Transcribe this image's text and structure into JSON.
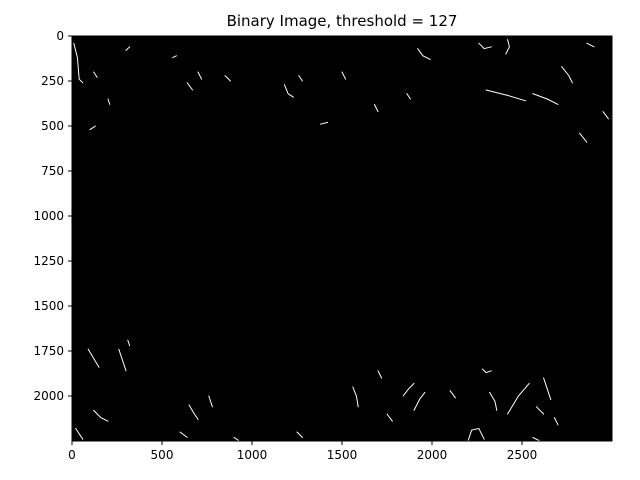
{
  "chart_data": {
    "type": "heatmap",
    "title": "Binary Image, threshold = 127",
    "xlabel": "",
    "ylabel": "",
    "xlim": [
      0,
      3000
    ],
    "ylim": [
      2250,
      0
    ],
    "x_ticks": [
      {
        "value": 0,
        "label": "0"
      },
      {
        "value": 500,
        "label": "500"
      },
      {
        "value": 1000,
        "label": "1000"
      },
      {
        "value": 1500,
        "label": "1500"
      },
      {
        "value": 2000,
        "label": "2000"
      },
      {
        "value": 2500,
        "label": "2500"
      }
    ],
    "y_ticks": [
      {
        "value": 0,
        "label": "0"
      },
      {
        "value": 250,
        "label": "250"
      },
      {
        "value": 500,
        "label": "500"
      },
      {
        "value": 750,
        "label": "750"
      },
      {
        "value": 1000,
        "label": "1000"
      },
      {
        "value": 1250,
        "label": "1250"
      },
      {
        "value": 1500,
        "label": "1500"
      },
      {
        "value": 1750,
        "label": "1750"
      },
      {
        "value": 2000,
        "label": "2000"
      }
    ],
    "grid": false,
    "colormap": "gray",
    "background_color": "#000000",
    "foreground_color": "#ffffff",
    "edges": [
      [
        [
          10,
          40
        ],
        [
          30,
          120
        ],
        [
          40,
          240
        ],
        [
          60,
          260
        ]
      ],
      [
        [
          120,
          200
        ],
        [
          140,
          230
        ]
      ],
      [
        [
          200,
          350
        ],
        [
          210,
          380
        ]
      ],
      [
        [
          100,
          520
        ],
        [
          130,
          500
        ]
      ],
      [
        [
          300,
          80
        ],
        [
          320,
          60
        ]
      ],
      [
        [
          560,
          120
        ],
        [
          580,
          110
        ]
      ],
      [
        [
          640,
          260
        ],
        [
          670,
          300
        ]
      ],
      [
        [
          700,
          200
        ],
        [
          720,
          240
        ]
      ],
      [
        [
          850,
          220
        ],
        [
          880,
          250
        ]
      ],
      [
        [
          1180,
          270
        ],
        [
          1200,
          320
        ],
        [
          1230,
          340
        ]
      ],
      [
        [
          1260,
          220
        ],
        [
          1280,
          250
        ]
      ],
      [
        [
          1380,
          490
        ],
        [
          1420,
          480
        ]
      ],
      [
        [
          1500,
          200
        ],
        [
          1520,
          240
        ]
      ],
      [
        [
          1680,
          380
        ],
        [
          1700,
          420
        ]
      ],
      [
        [
          1860,
          320
        ],
        [
          1880,
          350
        ]
      ],
      [
        [
          1920,
          70
        ],
        [
          1950,
          110
        ],
        [
          1990,
          130
        ]
      ],
      [
        [
          2260,
          40
        ],
        [
          2290,
          70
        ],
        [
          2330,
          60
        ]
      ],
      [
        [
          2420,
          20
        ],
        [
          2430,
          60
        ],
        [
          2410,
          100
        ]
      ],
      [
        [
          2300,
          300
        ],
        [
          2420,
          330
        ],
        [
          2520,
          360
        ]
      ],
      [
        [
          2560,
          320
        ],
        [
          2640,
          350
        ],
        [
          2700,
          380
        ]
      ],
      [
        [
          2720,
          170
        ],
        [
          2760,
          220
        ],
        [
          2780,
          260
        ]
      ],
      [
        [
          2860,
          40
        ],
        [
          2900,
          60
        ]
      ],
      [
        [
          2950,
          420
        ],
        [
          2980,
          460
        ]
      ],
      [
        [
          2820,
          540
        ],
        [
          2860,
          590
        ]
      ],
      [
        [
          90,
          1740
        ],
        [
          120,
          1790
        ],
        [
          150,
          1840
        ]
      ],
      [
        [
          260,
          1740
        ],
        [
          280,
          1800
        ],
        [
          300,
          1860
        ]
      ],
      [
        [
          310,
          1690
        ],
        [
          320,
          1720
        ]
      ],
      [
        [
          120,
          2080
        ],
        [
          160,
          2120
        ],
        [
          200,
          2140
        ]
      ],
      [
        [
          20,
          2180
        ],
        [
          40,
          2210
        ],
        [
          60,
          2240
        ]
      ],
      [
        [
          650,
          2050
        ],
        [
          680,
          2100
        ],
        [
          700,
          2130
        ]
      ],
      [
        [
          760,
          2000
        ],
        [
          780,
          2060
        ]
      ],
      [
        [
          600,
          2200
        ],
        [
          640,
          2230
        ]
      ],
      [
        [
          900,
          2230
        ],
        [
          930,
          2250
        ]
      ],
      [
        [
          1250,
          2200
        ],
        [
          1280,
          2230
        ]
      ],
      [
        [
          1560,
          1950
        ],
        [
          1580,
          2000
        ],
        [
          1590,
          2060
        ]
      ],
      [
        [
          1700,
          1860
        ],
        [
          1720,
          1900
        ]
      ],
      [
        [
          1750,
          2100
        ],
        [
          1780,
          2140
        ]
      ],
      [
        [
          1840,
          2000
        ],
        [
          1870,
          1960
        ],
        [
          1900,
          1930
        ]
      ],
      [
        [
          1900,
          2080
        ],
        [
          1930,
          2020
        ],
        [
          1960,
          1980
        ]
      ],
      [
        [
          2200,
          2250
        ],
        [
          2220,
          2190
        ],
        [
          2260,
          2180
        ],
        [
          2290,
          2240
        ]
      ],
      [
        [
          2280,
          1850
        ],
        [
          2300,
          1870
        ],
        [
          2330,
          1860
        ]
      ],
      [
        [
          2320,
          1980
        ],
        [
          2350,
          2030
        ],
        [
          2360,
          2080
        ]
      ],
      [
        [
          2420,
          2100
        ],
        [
          2480,
          2000
        ],
        [
          2540,
          1930
        ]
      ],
      [
        [
          2620,
          1900
        ],
        [
          2640,
          1960
        ],
        [
          2660,
          2020
        ]
      ],
      [
        [
          2580,
          2060
        ],
        [
          2620,
          2100
        ]
      ],
      [
        [
          2560,
          2230
        ],
        [
          2600,
          2250
        ]
      ],
      [
        [
          2680,
          2120
        ],
        [
          2700,
          2160
        ]
      ],
      [
        [
          2100,
          1970
        ],
        [
          2130,
          2010
        ]
      ]
    ]
  }
}
